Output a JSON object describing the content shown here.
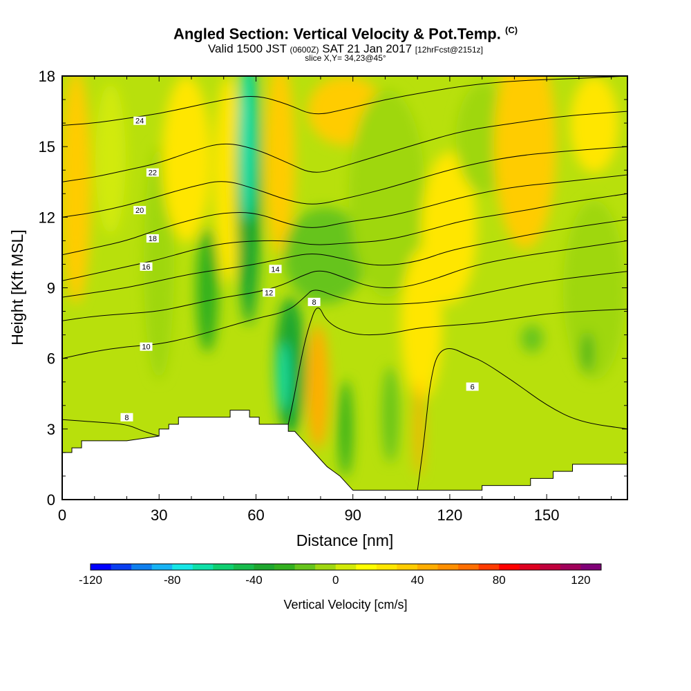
{
  "header": {
    "title": "Angled Section: Vertical Velocity & Pot.Temp.",
    "title_suffix": "(C)",
    "valid_prefix": "Valid 1500 JST",
    "valid_zulu": "(0600Z)",
    "valid_date": "SAT 21 Jan 2017",
    "forecast": "[12hrFcst@2151z]",
    "slice": "slice X,Y= 34,23@45°"
  },
  "chart_data": {
    "type": "heatmap",
    "xlabel": "Distance [nm]",
    "ylabel": "Height [Kft MSL]",
    "xlim": [
      0,
      175
    ],
    "ylim": [
      0,
      18
    ],
    "x_ticks": [
      0,
      30,
      60,
      90,
      120,
      150
    ],
    "y_ticks": [
      0,
      3,
      6,
      9,
      12,
      15,
      18
    ],
    "field_variable": "Vertical Velocity",
    "contour_variable": "Potential Temperature",
    "colorbar": {
      "label": "Vertical Velocity [cm/s]",
      "min": -120,
      "max": 130,
      "step": 10,
      "tick_values": [
        -120,
        -80,
        -40,
        0,
        40,
        80,
        120
      ],
      "colors": [
        "#0000ff",
        "#0a3ef0",
        "#0f7fee",
        "#17b3f4",
        "#16e6e6",
        "#0fe0a8",
        "#0fcf70",
        "#17bb4c",
        "#1ea72f",
        "#33b01f",
        "#66c41c",
        "#9fd711",
        "#d2ea08",
        "#ffff00",
        "#ffe600",
        "#ffcc00",
        "#ffad00",
        "#ff8f00",
        "#ff6e00",
        "#ff3b00",
        "#ff0000",
        "#de0020",
        "#c0003c",
        "#a0005a",
        "#800077"
      ]
    },
    "velocity_features": [
      {
        "name": "sinking core left of terrain",
        "x": 58,
        "y": 14.5,
        "value": -75
      },
      {
        "name": "sinking core lee slope",
        "x": 68,
        "y": 5,
        "value": -75
      },
      {
        "name": "sinking band aloft",
        "x": 80,
        "y": 10,
        "value": -35
      },
      {
        "name": "rising band",
        "x": 80,
        "y": 5,
        "value": 30
      },
      {
        "name": "rising band right",
        "x": 110,
        "y": 3,
        "value": 45
      },
      {
        "name": "rising column upper left",
        "x": 5,
        "y": 14,
        "value": 25
      },
      {
        "name": "rising column upper right",
        "x": 145,
        "y": 15,
        "value": 25
      }
    ],
    "terrain": [
      [
        0,
        2
      ],
      [
        3,
        2
      ],
      [
        3,
        2.2
      ],
      [
        6,
        2.2
      ],
      [
        6,
        2.5
      ],
      [
        20,
        2.5
      ],
      [
        30,
        2.7
      ],
      [
        30,
        3
      ],
      [
        33,
        3
      ],
      [
        33,
        3.2
      ],
      [
        36,
        3.2
      ],
      [
        36,
        3.5
      ],
      [
        52,
        3.5
      ],
      [
        52,
        3.8
      ],
      [
        58,
        3.8
      ],
      [
        58,
        3.5
      ],
      [
        61,
        3.5
      ],
      [
        61,
        3.2
      ],
      [
        70,
        3.2
      ],
      [
        70,
        2.9
      ],
      [
        72,
        2.9
      ],
      [
        74,
        2.6
      ],
      [
        76,
        2.3
      ],
      [
        78,
        2
      ],
      [
        80,
        1.7
      ],
      [
        82,
        1.4
      ],
      [
        84,
        1.2
      ],
      [
        86,
        1
      ],
      [
        88,
        0.7
      ],
      [
        90,
        0.4
      ],
      [
        110,
        0.4
      ],
      [
        120,
        0.4
      ],
      [
        130,
        0.4
      ],
      [
        130,
        0.6
      ],
      [
        145,
        0.6
      ],
      [
        145,
        0.9
      ],
      [
        152,
        0.9
      ],
      [
        152,
        1.2
      ],
      [
        158,
        1.2
      ],
      [
        158,
        1.5
      ],
      [
        175,
        1.5
      ]
    ],
    "contours": [
      {
        "value": 6,
        "points": [
          [
            110,
            0.4
          ],
          [
            111,
            1.4
          ],
          [
            112,
            2.5
          ],
          [
            113,
            3.8
          ],
          [
            114,
            5
          ],
          [
            116,
            6.2
          ],
          [
            120,
            6.5
          ],
          [
            126,
            6.1
          ],
          [
            130,
            5.9
          ],
          [
            140,
            5
          ],
          [
            150,
            4
          ],
          [
            160,
            3.3
          ],
          [
            175,
            3
          ]
        ],
        "label": {
          "x": 127,
          "y": 4.8
        }
      },
      {
        "value": 8,
        "points": [
          [
            0,
            3.4
          ],
          [
            10,
            3.3
          ],
          [
            20,
            3.2
          ],
          [
            25,
            2.9
          ],
          [
            30,
            2.7
          ]
        ],
        "label": {
          "x": 20,
          "y": 3.5
        }
      },
      {
        "value": 8,
        "points": [
          [
            70,
            3.2
          ],
          [
            72,
            4.5
          ],
          [
            74,
            6
          ],
          [
            76,
            7.2
          ],
          [
            79,
            8.4
          ],
          [
            82,
            7.5
          ],
          [
            90,
            7
          ],
          [
            100,
            7
          ],
          [
            110,
            7.3
          ],
          [
            120,
            7.4
          ],
          [
            130,
            7.5
          ],
          [
            140,
            7.7
          ],
          [
            150,
            7.9
          ],
          [
            160,
            8
          ],
          [
            175,
            8.1
          ]
        ],
        "label": {
          "x": 78,
          "y": 8.4
        }
      },
      {
        "value": 10,
        "points": [
          [
            0,
            6
          ],
          [
            10,
            6.3
          ],
          [
            20,
            6.5
          ],
          [
            30,
            6.6
          ],
          [
            40,
            6.9
          ],
          [
            50,
            7.3
          ],
          [
            60,
            7.7
          ],
          [
            70,
            8
          ],
          [
            75,
            8.6
          ],
          [
            78,
            9
          ],
          [
            85,
            8.6
          ],
          [
            95,
            8.3
          ],
          [
            105,
            8.3
          ],
          [
            115,
            8.4
          ],
          [
            125,
            8.6
          ],
          [
            135,
            8.9
          ],
          [
            150,
            9.3
          ],
          [
            175,
            9.7
          ]
        ],
        "label": {
          "x": 26,
          "y": 6.5
        }
      },
      {
        "value": 12,
        "points": [
          [
            0,
            7.6
          ],
          [
            10,
            7.8
          ],
          [
            20,
            7.9
          ],
          [
            30,
            8
          ],
          [
            40,
            8.3
          ],
          [
            50,
            8.6
          ],
          [
            60,
            8.8
          ],
          [
            68,
            9.1
          ],
          [
            74,
            9.5
          ],
          [
            80,
            9.8
          ],
          [
            88,
            9.4
          ],
          [
            96,
            9
          ],
          [
            106,
            9
          ],
          [
            116,
            9.4
          ],
          [
            126,
            9.9
          ],
          [
            140,
            10.3
          ],
          [
            155,
            10.6
          ],
          [
            175,
            11
          ]
        ],
        "label": {
          "x": 64,
          "y": 8.8
        }
      },
      {
        "value": 14,
        "points": [
          [
            0,
            8.6
          ],
          [
            10,
            8.8
          ],
          [
            20,
            9
          ],
          [
            30,
            9.3
          ],
          [
            40,
            9.6
          ],
          [
            50,
            9.8
          ],
          [
            60,
            10
          ],
          [
            70,
            10.3
          ],
          [
            78,
            10.5
          ],
          [
            88,
            10.2
          ],
          [
            98,
            9.9
          ],
          [
            110,
            10.1
          ],
          [
            120,
            10.6
          ],
          [
            135,
            11
          ],
          [
            150,
            11.4
          ],
          [
            175,
            11.9
          ]
        ],
        "label": {
          "x": 66,
          "y": 9.8
        }
      },
      {
        "value": 16,
        "points": [
          [
            0,
            9.3
          ],
          [
            10,
            9.6
          ],
          [
            20,
            9.9
          ],
          [
            30,
            10.2
          ],
          [
            40,
            10.6
          ],
          [
            50,
            10.9
          ],
          [
            60,
            11
          ],
          [
            70,
            11
          ],
          [
            78,
            10.8
          ],
          [
            88,
            10.9
          ],
          [
            100,
            11
          ],
          [
            112,
            11.4
          ],
          [
            125,
            11.9
          ],
          [
            140,
            12.2
          ],
          [
            155,
            12.6
          ],
          [
            175,
            13
          ]
        ],
        "label": {
          "x": 26,
          "y": 9.9
        }
      },
      {
        "value": 18,
        "points": [
          [
            0,
            10.4
          ],
          [
            10,
            10.7
          ],
          [
            20,
            11
          ],
          [
            30,
            11.5
          ],
          [
            40,
            11.9
          ],
          [
            50,
            12.2
          ],
          [
            60,
            12.2
          ],
          [
            70,
            11.7
          ],
          [
            78,
            11.5
          ],
          [
            88,
            11.8
          ],
          [
            100,
            12
          ],
          [
            112,
            12.4
          ],
          [
            125,
            12.9
          ],
          [
            140,
            13.3
          ],
          [
            155,
            13.5
          ],
          [
            175,
            13.8
          ]
        ],
        "label": {
          "x": 28,
          "y": 11.1
        }
      },
      {
        "value": 20,
        "points": [
          [
            0,
            12
          ],
          [
            10,
            12.2
          ],
          [
            20,
            12.5
          ],
          [
            30,
            12.9
          ],
          [
            40,
            13.3
          ],
          [
            50,
            13.6
          ],
          [
            60,
            13.2
          ],
          [
            70,
            12.7
          ],
          [
            78,
            12.5
          ],
          [
            88,
            12.8
          ],
          [
            100,
            13.2
          ],
          [
            112,
            13.7
          ],
          [
            125,
            14.2
          ],
          [
            140,
            14.6
          ],
          [
            155,
            14.8
          ],
          [
            175,
            15
          ]
        ],
        "label": {
          "x": 24,
          "y": 12.3
        }
      },
      {
        "value": 22,
        "points": [
          [
            0,
            13.5
          ],
          [
            10,
            13.7
          ],
          [
            20,
            14
          ],
          [
            30,
            14.3
          ],
          [
            40,
            14.8
          ],
          [
            50,
            15.2
          ],
          [
            60,
            14.9
          ],
          [
            70,
            14.3
          ],
          [
            78,
            13.8
          ],
          [
            88,
            14.2
          ],
          [
            100,
            14.7
          ],
          [
            112,
            15.2
          ],
          [
            125,
            15.7
          ],
          [
            140,
            16
          ],
          [
            155,
            16.3
          ],
          [
            175,
            16.5
          ]
        ],
        "label": {
          "x": 28,
          "y": 13.9
        }
      },
      {
        "value": 24,
        "points": [
          [
            0,
            15.9
          ],
          [
            10,
            16
          ],
          [
            20,
            16.2
          ],
          [
            30,
            16.4
          ],
          [
            40,
            16.7
          ],
          [
            50,
            17
          ],
          [
            60,
            17.2
          ],
          [
            70,
            16.8
          ],
          [
            78,
            16.3
          ],
          [
            88,
            16.6
          ],
          [
            100,
            17
          ],
          [
            112,
            17.3
          ],
          [
            125,
            17.6
          ],
          [
            140,
            17.8
          ],
          [
            160,
            17.9
          ],
          [
            175,
            18
          ]
        ],
        "label": {
          "x": 24,
          "y": 16.1
        }
      }
    ]
  }
}
